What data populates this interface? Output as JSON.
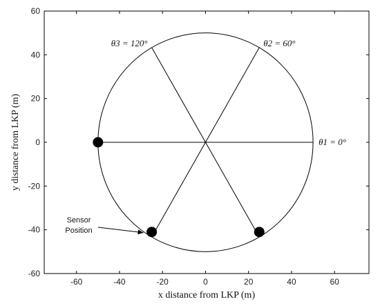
{
  "chart_data": {
    "type": "scatter",
    "xlabel": "x distance from LKP (m)",
    "ylabel": "y distance from LKP (m)",
    "xlim": [
      -75,
      76
    ],
    "ylim": [
      -60,
      60
    ],
    "xticks": [
      -60,
      -40,
      -20,
      0,
      20,
      40,
      60
    ],
    "yticks": [
      -60,
      -40,
      -20,
      0,
      20,
      40,
      60
    ],
    "grid": false,
    "circle": {
      "center": [
        0,
        0
      ],
      "radius": 50
    },
    "rays": [
      {
        "angle_deg": 0,
        "label": "θ1 = 0°"
      },
      {
        "angle_deg": 60,
        "label": "θ2 = 60°"
      },
      {
        "angle_deg": 120,
        "label": "θ3 = 120°"
      }
    ],
    "sensor_positions": [
      {
        "x": -50,
        "y": 0
      },
      {
        "x": -25,
        "y": -41
      },
      {
        "x": 25,
        "y": -41
      }
    ],
    "annotation": {
      "line1": "Sensor",
      "line2": "Position"
    }
  }
}
